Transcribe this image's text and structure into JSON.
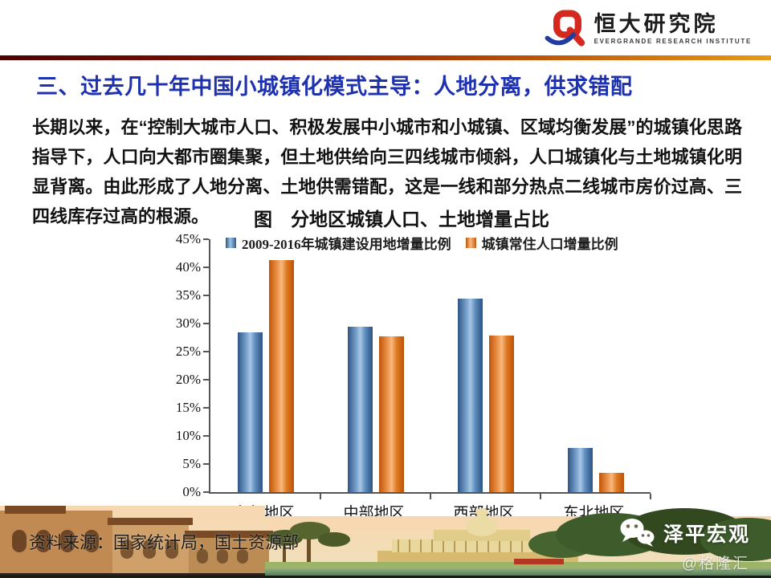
{
  "header": {
    "brand_cn": "恒大研究院",
    "brand_en": "EVERGRANDE RESEARCH INSTITUTE"
  },
  "title": "三、过去几十年中国小城镇化模式主导：人地分离，供求错配",
  "body": {
    "paragraph": "长期以来，在“控制大城市人口、积极发展中小城市和小城镇、区域均衡发展”的城镇化思路指导下，人口向大都市圈集聚，但土地供给向三四线城市倾斜，人口城镇化与土地城镇化明显背离。由此形成了人地分离、土地供需错配，这是一线和部分热点二线城市房价过高、三四线库存过高的根源。"
  },
  "chart_data": {
    "type": "bar",
    "title": "图　分地区城镇人口、土地增量占比",
    "categories": [
      "东部地区",
      "中部地区",
      "西部地区",
      "东北地区"
    ],
    "series": [
      {
        "name": "2009-2016年城镇建设用地增量比例",
        "color": "#4F81BD",
        "values": [
          28.5,
          29.4,
          34.5,
          7.8
        ]
      },
      {
        "name": "城镇常住人口增量比例",
        "color": "#E8751A",
        "values": [
          41.3,
          27.7,
          27.8,
          3.5
        ]
      }
    ],
    "ylim": [
      0,
      45
    ],
    "ytick_step": 5,
    "yticks": [
      "0%",
      "5%",
      "10%",
      "15%",
      "20%",
      "25%",
      "30%",
      "35%",
      "40%",
      "45%"
    ],
    "ytick_format": "percent",
    "xlabel": "",
    "ylabel": "",
    "grid": false,
    "legend_position": "top"
  },
  "footer": {
    "source": "资料来源：国家统计局，国土资源部",
    "wechat_name": "泽平宏观",
    "watermark": "@格隆汇"
  },
  "colors": {
    "title_blue": "#1E31AE",
    "series_blue": "#4F81BD",
    "series_orange": "#E8751A",
    "header_rule_left": "#5A0404",
    "header_rule_right": "#EFA21F",
    "logo_red": "#D5281E",
    "logo_blue": "#1F3C9E"
  }
}
